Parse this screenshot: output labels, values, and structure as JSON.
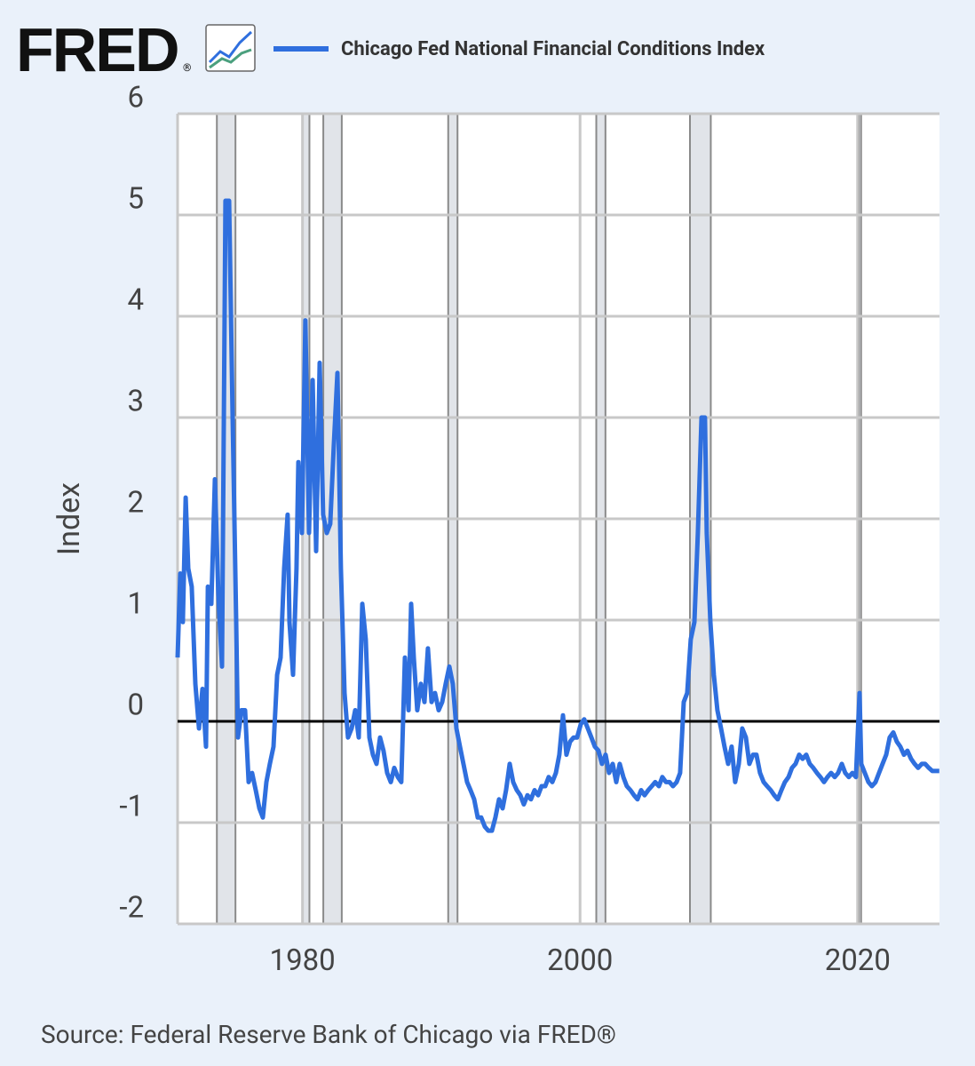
{
  "logo": "FRED",
  "logo_mark": "®",
  "chart_data": {
    "type": "line",
    "y_label": "Index",
    "source": "Source: Federal Reserve Bank of Chicago via FRED®",
    "xlim": [
      1971,
      2025.9
    ],
    "ylim": [
      -2,
      6
    ],
    "xticks": [
      1980,
      2000,
      2020
    ],
    "yticks": [
      -2,
      -1,
      0,
      1,
      2,
      3,
      4,
      5,
      6
    ],
    "grid": true,
    "recessions": [
      [
        1973.83,
        1975.17
      ],
      [
        1980.0,
        1980.5
      ],
      [
        1981.5,
        1982.83
      ],
      [
        1990.5,
        1991.17
      ],
      [
        2001.17,
        2001.83
      ],
      [
        2007.92,
        2009.42
      ],
      [
        2020.08,
        2020.25
      ]
    ],
    "series": [
      {
        "name": "Chicago Fed National Financial Conditions Index",
        "color": "#2f6fde",
        "x": [
          1971.0,
          1971.19,
          1971.38,
          1971.58,
          1971.77,
          1972.02,
          1972.28,
          1972.54,
          1972.79,
          1973.05,
          1973.18,
          1973.43,
          1973.69,
          1973.94,
          1974.2,
          1974.45,
          1974.71,
          1974.97,
          1975.22,
          1975.35,
          1975.61,
          1975.86,
          1976.12,
          1976.37,
          1976.63,
          1976.89,
          1977.14,
          1977.4,
          1977.65,
          1977.91,
          1978.17,
          1978.42,
          1978.68,
          1978.93,
          1979.06,
          1979.32,
          1979.57,
          1979.7,
          1979.96,
          1980.21,
          1980.47,
          1980.73,
          1980.98,
          1981.24,
          1981.49,
          1981.75,
          1982.0,
          1982.26,
          1982.52,
          1982.77,
          1983.03,
          1983.28,
          1983.54,
          1983.8,
          1984.05,
          1984.31,
          1984.56,
          1984.82,
          1985.08,
          1985.33,
          1985.59,
          1985.84,
          1986.1,
          1986.36,
          1986.61,
          1986.87,
          1987.12,
          1987.38,
          1987.64,
          1987.83,
          1988.02,
          1988.27,
          1988.53,
          1988.79,
          1989.04,
          1989.3,
          1989.55,
          1989.81,
          1990.07,
          1990.32,
          1990.58,
          1990.83,
          1991.09,
          1991.35,
          1991.6,
          1991.86,
          1992.11,
          1992.37,
          1992.63,
          1992.88,
          1993.14,
          1993.39,
          1993.65,
          1993.9,
          1994.16,
          1994.42,
          1994.67,
          1994.93,
          1995.18,
          1995.44,
          1995.7,
          1995.95,
          1996.21,
          1996.46,
          1996.72,
          1996.98,
          1997.23,
          1997.49,
          1997.74,
          1998.0,
          1998.26,
          1998.51,
          1998.77,
          1999.02,
          1999.28,
          1999.54,
          1999.79,
          2000.05,
          2000.3,
          2000.56,
          2000.82,
          2001.07,
          2001.33,
          2001.58,
          2001.84,
          2002.09,
          2002.35,
          2002.61,
          2002.86,
          2003.12,
          2003.37,
          2003.63,
          2003.89,
          2004.14,
          2004.4,
          2004.65,
          2004.91,
          2005.17,
          2005.42,
          2005.68,
          2005.93,
          2006.19,
          2006.45,
          2006.7,
          2006.96,
          2007.21,
          2007.47,
          2007.72,
          2007.98,
          2008.24,
          2008.49,
          2008.75,
          2009.0,
          2009.13,
          2009.39,
          2009.64,
          2009.9,
          2010.16,
          2010.41,
          2010.67,
          2010.92,
          2011.18,
          2011.44,
          2011.69,
          2011.95,
          2012.2,
          2012.46,
          2012.71,
          2012.97,
          2013.23,
          2013.48,
          2013.74,
          2013.99,
          2014.25,
          2014.51,
          2014.76,
          2015.02,
          2015.27,
          2015.53,
          2015.79,
          2016.04,
          2016.3,
          2016.55,
          2016.81,
          2017.07,
          2017.32,
          2017.58,
          2017.83,
          2018.09,
          2018.35,
          2018.6,
          2018.86,
          2019.11,
          2019.37,
          2019.62,
          2019.88,
          2020.14,
          2020.26,
          2020.52,
          2020.78,
          2021.03,
          2021.29,
          2021.54,
          2021.8,
          2022.06,
          2022.31,
          2022.57,
          2022.82,
          2023.08,
          2023.34,
          2023.59,
          2023.85,
          2024.11,
          2024.36,
          2024.62,
          2024.87,
          2025.13,
          2025.38,
          2025.89
        ],
        "values": [
          0.63,
          1.46,
          0.98,
          2.21,
          1.51,
          1.33,
          0.37,
          -0.07,
          0.32,
          -0.25,
          1.33,
          1.16,
          2.39,
          1.25,
          0.54,
          5.14,
          5.14,
          2.99,
          0.98,
          -0.16,
          0.11,
          0.11,
          -0.6,
          -0.51,
          -0.68,
          -0.86,
          -0.95,
          -0.6,
          -0.42,
          -0.25,
          0.46,
          0.63,
          1.51,
          2.04,
          0.98,
          0.46,
          1.51,
          2.56,
          1.86,
          3.96,
          1.86,
          3.37,
          1.68,
          3.54,
          2.04,
          1.86,
          1.95,
          2.74,
          3.44,
          1.51,
          0.28,
          -0.16,
          -0.07,
          0.11,
          -0.16,
          1.16,
          0.81,
          -0.16,
          -0.33,
          -0.42,
          -0.16,
          -0.29,
          -0.51,
          -0.6,
          -0.46,
          -0.55,
          -0.6,
          0.63,
          0.11,
          1.16,
          0.63,
          0.11,
          0.37,
          0.19,
          0.72,
          0.19,
          0.28,
          0.11,
          0.19,
          0.37,
          0.54,
          0.37,
          -0.07,
          -0.25,
          -0.42,
          -0.6,
          -0.68,
          -0.77,
          -0.95,
          -0.95,
          -1.04,
          -1.08,
          -1.08,
          -0.95,
          -0.77,
          -0.86,
          -0.68,
          -0.42,
          -0.6,
          -0.68,
          -0.73,
          -0.82,
          -0.73,
          -0.77,
          -0.68,
          -0.73,
          -0.64,
          -0.64,
          -0.55,
          -0.6,
          -0.51,
          -0.33,
          0.06,
          -0.33,
          -0.2,
          -0.16,
          -0.16,
          -0.03,
          0.02,
          -0.07,
          -0.16,
          -0.25,
          -0.29,
          -0.42,
          -0.33,
          -0.51,
          -0.42,
          -0.6,
          -0.42,
          -0.55,
          -0.64,
          -0.68,
          -0.73,
          -0.77,
          -0.68,
          -0.73,
          -0.68,
          -0.64,
          -0.6,
          -0.64,
          -0.55,
          -0.6,
          -0.6,
          -0.64,
          -0.6,
          -0.51,
          0.19,
          0.28,
          0.81,
          0.98,
          1.86,
          3.0,
          3.0,
          1.86,
          0.98,
          0.46,
          0.11,
          -0.07,
          -0.25,
          -0.42,
          -0.25,
          -0.6,
          -0.42,
          -0.07,
          -0.16,
          -0.42,
          -0.33,
          -0.33,
          -0.51,
          -0.6,
          -0.64,
          -0.68,
          -0.73,
          -0.77,
          -0.68,
          -0.6,
          -0.55,
          -0.46,
          -0.42,
          -0.33,
          -0.37,
          -0.33,
          -0.42,
          -0.46,
          -0.51,
          -0.55,
          -0.6,
          -0.55,
          -0.51,
          -0.55,
          -0.51,
          -0.42,
          -0.51,
          -0.55,
          -0.51,
          -0.55,
          0.28,
          -0.42,
          -0.51,
          -0.6,
          -0.64,
          -0.6,
          -0.51,
          -0.42,
          -0.33,
          -0.16,
          -0.11,
          -0.2,
          -0.25,
          -0.33,
          -0.29,
          -0.37,
          -0.42,
          -0.46,
          -0.42,
          -0.42,
          -0.46,
          -0.49,
          -0.49
        ]
      }
    ]
  }
}
